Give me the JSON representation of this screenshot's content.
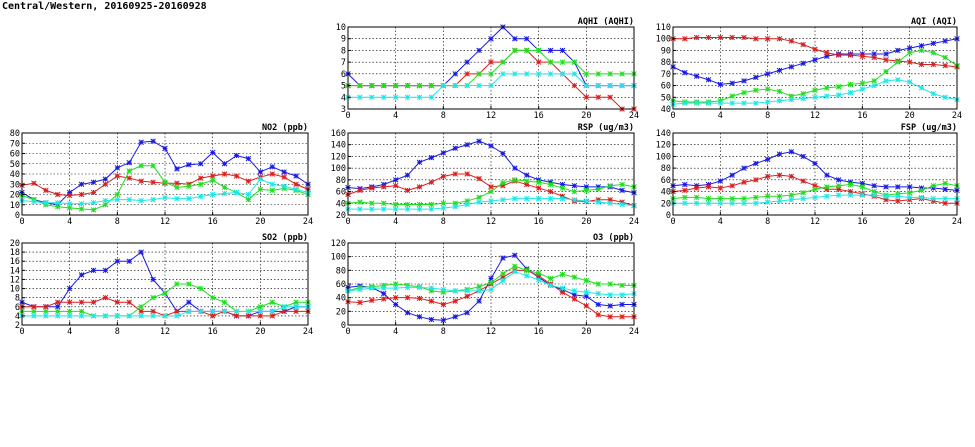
{
  "page": {
    "title": "Central/Western, 20160925-20160928"
  },
  "colors": {
    "blue": "#1a1ae6",
    "red": "#dc1e1e",
    "green": "#22dd22",
    "cyan": "#22e6e6"
  },
  "chart_data": [
    {
      "id": "aqhi",
      "type": "line",
      "title": "AQHI (AQHI)",
      "xlim": [
        0,
        24
      ],
      "xticks": [
        0,
        4,
        8,
        12,
        16,
        20,
        24
      ],
      "ylim": [
        3,
        10
      ],
      "yticks": [
        3,
        4,
        5,
        6,
        7,
        8,
        9,
        10
      ],
      "grid": true,
      "x": [
        0,
        1,
        2,
        3,
        4,
        5,
        6,
        7,
        8,
        9,
        10,
        11,
        12,
        13,
        14,
        15,
        16,
        17,
        18,
        19,
        20,
        21,
        22,
        23,
        24
      ],
      "series": [
        {
          "color": "blue",
          "values": [
            6,
            5,
            5,
            5,
            5,
            5,
            5,
            5,
            5,
            6,
            7,
            8,
            9,
            10,
            9,
            9,
            8,
            8,
            8,
            7,
            5,
            5,
            5,
            5,
            5
          ]
        },
        {
          "color": "red",
          "values": [
            5,
            5,
            5,
            5,
            5,
            5,
            5,
            5,
            5,
            5,
            6,
            6,
            7,
            7,
            8,
            8,
            7,
            7,
            6,
            5,
            4,
            4,
            4,
            3,
            3
          ]
        },
        {
          "color": "green",
          "values": [
            5,
            5,
            5,
            5,
            5,
            5,
            5,
            5,
            5,
            5,
            5,
            6,
            6,
            7,
            8,
            8,
            8,
            7,
            7,
            7,
            6,
            6,
            6,
            6,
            6
          ]
        },
        {
          "color": "cyan",
          "values": [
            4,
            4,
            4,
            4,
            4,
            4,
            4,
            4,
            5,
            5,
            5,
            5,
            5,
            6,
            6,
            6,
            6,
            6,
            6,
            6,
            5,
            5,
            5,
            5,
            5
          ]
        }
      ]
    },
    {
      "id": "aqi",
      "type": "line",
      "title": "AQI (AQI)",
      "xlim": [
        0,
        24
      ],
      "xticks": [
        0,
        4,
        8,
        12,
        16,
        20,
        24
      ],
      "ylim": [
        40,
        110
      ],
      "yticks": [
        40,
        50,
        60,
        70,
        80,
        90,
        100,
        110
      ],
      "grid": true,
      "x": [
        0,
        1,
        2,
        3,
        4,
        5,
        6,
        7,
        8,
        9,
        10,
        11,
        12,
        13,
        14,
        15,
        16,
        17,
        18,
        19,
        20,
        21,
        22,
        23,
        24
      ],
      "series": [
        {
          "color": "blue",
          "values": [
            76,
            71,
            68,
            65,
            61,
            62,
            64,
            67,
            70,
            73,
            76,
            79,
            82,
            85,
            87,
            87,
            87,
            87,
            87,
            90,
            92,
            94,
            96,
            98,
            100
          ]
        },
        {
          "color": "red",
          "values": [
            100,
            100,
            101,
            101,
            101,
            101,
            101,
            100,
            100,
            100,
            98,
            95,
            91,
            88,
            86,
            86,
            85,
            84,
            82,
            81,
            80,
            78,
            78,
            77,
            76
          ]
        },
        {
          "color": "green",
          "values": [
            47,
            46,
            46,
            46,
            47,
            51,
            54,
            56,
            57,
            55,
            51,
            53,
            56,
            58,
            59,
            61,
            62,
            64,
            72,
            80,
            88,
            90,
            88,
            84,
            77
          ]
        },
        {
          "color": "cyan",
          "values": [
            44,
            45,
            45,
            45,
            45,
            45,
            45,
            45,
            46,
            47,
            48,
            49,
            50,
            51,
            52,
            54,
            57,
            60,
            64,
            65,
            63,
            58,
            53,
            50,
            48
          ]
        }
      ]
    },
    {
      "id": "no2",
      "type": "line",
      "title": "NO2 (ppb)",
      "xlim": [
        0,
        24
      ],
      "xticks": [
        0,
        4,
        8,
        12,
        16,
        20,
        24
      ],
      "ylim": [
        0,
        80
      ],
      "yticks": [
        0,
        10,
        20,
        30,
        40,
        50,
        60,
        70,
        80
      ],
      "grid": true,
      "x": [
        0,
        1,
        2,
        3,
        4,
        5,
        6,
        7,
        8,
        9,
        10,
        11,
        12,
        13,
        14,
        15,
        16,
        17,
        18,
        19,
        20,
        21,
        22,
        23,
        24
      ],
      "series": [
        {
          "color": "blue",
          "values": [
            22,
            15,
            12,
            10,
            22,
            30,
            32,
            35,
            46,
            51,
            71,
            72,
            65,
            45,
            49,
            50,
            61,
            50,
            58,
            55,
            42,
            47,
            42,
            38,
            30
          ]
        },
        {
          "color": "red",
          "values": [
            29,
            31,
            24,
            20,
            19,
            20,
            22,
            30,
            38,
            36,
            33,
            32,
            31,
            31,
            30,
            36,
            38,
            40,
            38,
            33,
            37,
            40,
            37,
            30,
            25
          ]
        },
        {
          "color": "green",
          "values": [
            19,
            15,
            10,
            8,
            7,
            6,
            5,
            10,
            20,
            43,
            48,
            48,
            32,
            27,
            28,
            30,
            34,
            27,
            22,
            15,
            25,
            24,
            26,
            24,
            20
          ]
        },
        {
          "color": "cyan",
          "values": [
            14,
            13,
            12,
            12,
            11,
            11,
            12,
            14,
            15,
            15,
            14,
            15,
            17,
            16,
            16,
            18,
            20,
            21,
            22,
            20,
            35,
            30,
            28,
            25,
            22
          ]
        }
      ]
    },
    {
      "id": "rsp",
      "type": "line",
      "title": "RSP (ug/m3)",
      "xlim": [
        0,
        24
      ],
      "xticks": [
        0,
        4,
        8,
        12,
        16,
        20,
        24
      ],
      "ylim": [
        20,
        160
      ],
      "yticks": [
        20,
        40,
        60,
        80,
        100,
        120,
        140,
        160
      ],
      "grid": true,
      "x": [
        0,
        1,
        2,
        3,
        4,
        5,
        6,
        7,
        8,
        9,
        10,
        11,
        12,
        13,
        14,
        15,
        16,
        17,
        18,
        19,
        20,
        21,
        22,
        23,
        24
      ],
      "series": [
        {
          "color": "blue",
          "values": [
            67,
            65,
            68,
            72,
            80,
            88,
            110,
            118,
            126,
            134,
            140,
            146,
            138,
            125,
            100,
            88,
            80,
            76,
            72,
            70,
            68,
            68,
            68,
            62,
            58
          ]
        },
        {
          "color": "red",
          "values": [
            55,
            62,
            66,
            68,
            70,
            62,
            68,
            76,
            86,
            90,
            90,
            82,
            68,
            70,
            78,
            72,
            66,
            60,
            52,
            44,
            43,
            46,
            46,
            42,
            36
          ]
        },
        {
          "color": "green",
          "values": [
            40,
            42,
            40,
            40,
            38,
            38,
            38,
            38,
            40,
            40,
            44,
            50,
            60,
            75,
            80,
            78,
            76,
            72,
            66,
            60,
            62,
            64,
            70,
            72,
            68
          ]
        },
        {
          "color": "cyan",
          "values": [
            30,
            30,
            30,
            30,
            30,
            30,
            30,
            30,
            32,
            34,
            38,
            42,
            44,
            46,
            48,
            48,
            48,
            48,
            48,
            46,
            44,
            42,
            40,
            38,
            36
          ]
        }
      ]
    },
    {
      "id": "fsp",
      "type": "line",
      "title": "FSP (ug/m3)",
      "xlim": [
        0,
        24
      ],
      "xticks": [
        0,
        4,
        8,
        12,
        16,
        20,
        24
      ],
      "ylim": [
        0,
        140
      ],
      "yticks": [
        0,
        20,
        40,
        60,
        80,
        100,
        120,
        140
      ],
      "grid": true,
      "x": [
        0,
        1,
        2,
        3,
        4,
        5,
        6,
        7,
        8,
        9,
        10,
        11,
        12,
        13,
        14,
        15,
        16,
        17,
        18,
        19,
        20,
        21,
        22,
        23,
        24
      ],
      "series": [
        {
          "color": "blue",
          "values": [
            50,
            52,
            50,
            52,
            58,
            68,
            80,
            88,
            95,
            104,
            108,
            100,
            88,
            68,
            60,
            56,
            54,
            50,
            48,
            48,
            48,
            46,
            46,
            44,
            42
          ]
        },
        {
          "color": "red",
          "values": [
            40,
            42,
            46,
            48,
            46,
            50,
            56,
            60,
            66,
            68,
            66,
            58,
            50,
            44,
            44,
            40,
            36,
            32,
            26,
            24,
            26,
            28,
            24,
            20,
            20
          ]
        },
        {
          "color": "green",
          "values": [
            28,
            30,
            30,
            28,
            28,
            28,
            28,
            30,
            32,
            32,
            34,
            38,
            44,
            48,
            50,
            52,
            48,
            40,
            34,
            36,
            38,
            42,
            50,
            54,
            50
          ]
        },
        {
          "color": "cyan",
          "values": [
            20,
            20,
            20,
            20,
            20,
            20,
            20,
            20,
            22,
            24,
            26,
            28,
            30,
            32,
            34,
            34,
            34,
            34,
            32,
            32,
            30,
            30,
            28,
            28,
            28
          ]
        }
      ]
    },
    {
      "id": "so2",
      "type": "line",
      "title": "SO2 (ppb)",
      "xlim": [
        0,
        24
      ],
      "xticks": [
        0,
        4,
        8,
        12,
        16,
        20,
        24
      ],
      "ylim": [
        2,
        20
      ],
      "yticks": [
        2,
        4,
        6,
        8,
        10,
        12,
        14,
        16,
        18,
        20
      ],
      "grid": true,
      "x": [
        0,
        1,
        2,
        3,
        4,
        5,
        6,
        7,
        8,
        9,
        10,
        11,
        12,
        13,
        14,
        15,
        16,
        17,
        18,
        19,
        20,
        21,
        22,
        23,
        24
      ],
      "series": [
        {
          "color": "blue",
          "values": [
            7,
            6,
            6,
            6,
            10,
            13,
            14,
            14,
            16,
            16,
            18,
            12,
            9,
            5,
            7,
            5,
            5,
            5,
            4,
            4,
            5,
            5,
            5,
            6,
            6
          ]
        },
        {
          "color": "red",
          "values": [
            6,
            6,
            6,
            7,
            7,
            7,
            7,
            8,
            7,
            7,
            5,
            5,
            4,
            5,
            5,
            5,
            4,
            5,
            4,
            4,
            4,
            4,
            5,
            5,
            5
          ]
        },
        {
          "color": "green",
          "values": [
            5,
            5,
            5,
            5,
            5,
            5,
            4,
            4,
            4,
            4,
            6,
            8,
            9,
            11,
            11,
            10,
            8,
            7,
            5,
            5,
            6,
            7,
            6,
            7,
            7
          ]
        },
        {
          "color": "cyan",
          "values": [
            4,
            4,
            4,
            4,
            4,
            4,
            4,
            4,
            4,
            4,
            4,
            4,
            4,
            4,
            5,
            5,
            5,
            5,
            5,
            5,
            5,
            5,
            6,
            6,
            6
          ]
        }
      ]
    },
    {
      "id": "o3",
      "type": "line",
      "title": "O3 (ppb)",
      "xlim": [
        0,
        24
      ],
      "xticks": [
        0,
        4,
        8,
        12,
        16,
        20,
        24
      ],
      "ylim": [
        0,
        120
      ],
      "yticks": [
        0,
        20,
        40,
        60,
        80,
        100,
        120
      ],
      "grid": true,
      "x": [
        0,
        1,
        2,
        3,
        4,
        5,
        6,
        7,
        8,
        9,
        10,
        11,
        12,
        13,
        14,
        15,
        16,
        17,
        18,
        19,
        20,
        21,
        22,
        23,
        24
      ],
      "series": [
        {
          "color": "blue",
          "values": [
            55,
            57,
            55,
            46,
            30,
            18,
            12,
            8,
            7,
            12,
            18,
            35,
            68,
            98,
            102,
            82,
            70,
            58,
            52,
            44,
            42,
            30,
            28,
            30,
            30
          ]
        },
        {
          "color": "red",
          "values": [
            34,
            33,
            36,
            38,
            40,
            40,
            39,
            35,
            30,
            35,
            42,
            50,
            60,
            70,
            80,
            80,
            72,
            60,
            48,
            38,
            28,
            15,
            12,
            12,
            12
          ]
        },
        {
          "color": "green",
          "values": [
            50,
            55,
            56,
            58,
            60,
            58,
            56,
            50,
            48,
            50,
            52,
            56,
            62,
            75,
            86,
            80,
            76,
            68,
            74,
            70,
            65,
            60,
            60,
            58,
            58
          ]
        },
        {
          "color": "cyan",
          "values": [
            50,
            52,
            54,
            54,
            54,
            55,
            55,
            54,
            52,
            50,
            50,
            50,
            52,
            65,
            78,
            72,
            66,
            58,
            54,
            50,
            48,
            46,
            44,
            44,
            46
          ]
        }
      ]
    }
  ]
}
